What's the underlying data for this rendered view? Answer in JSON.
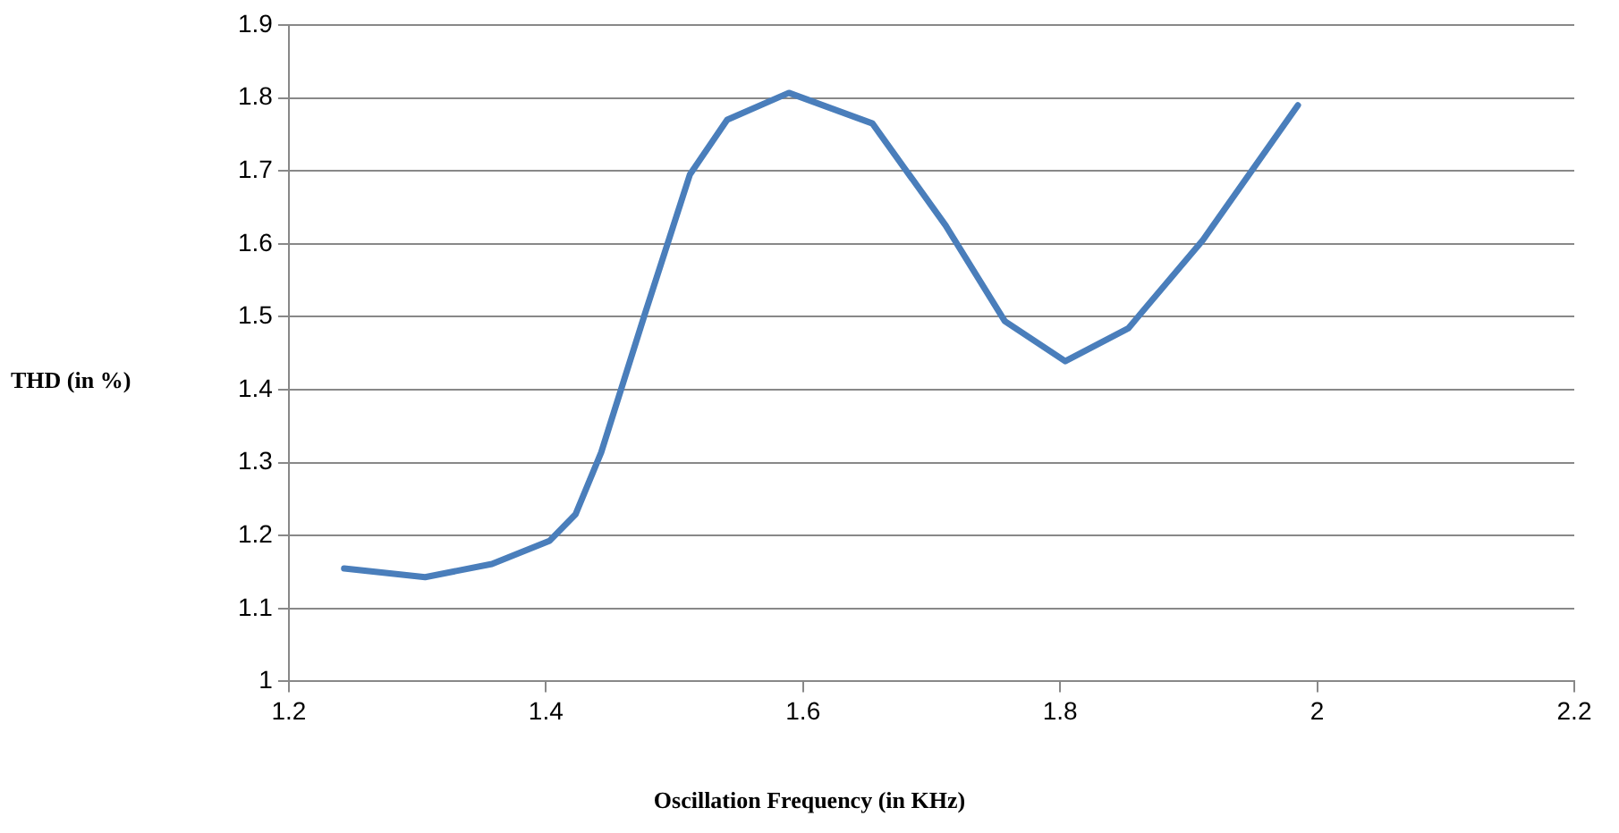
{
  "chart_data": {
    "type": "line",
    "xlabel": "Oscillation Frequency (in KHz)",
    "ylabel": "THD (in %)",
    "series": [
      {
        "color": "#4a7ebb",
        "x": [
          1.243,
          1.306,
          1.358,
          1.403,
          1.423,
          1.443,
          1.477,
          1.512,
          1.541,
          1.589,
          1.654,
          1.711,
          1.757,
          1.804,
          1.853,
          1.911,
          1.985
        ],
        "values": [
          1.155,
          1.143,
          1.161,
          1.193,
          1.229,
          1.314,
          1.504,
          1.695,
          1.77,
          1.807,
          1.765,
          1.625,
          1.494,
          1.439,
          1.484,
          1.605,
          1.79
        ]
      }
    ],
    "xlim": [
      1.2,
      2.2
    ],
    "xticks": [
      1.2,
      1.4,
      1.6,
      1.8,
      2,
      2.2
    ],
    "ylim": [
      1,
      1.9
    ],
    "yticks": [
      1,
      1.1,
      1.2,
      1.3,
      1.4,
      1.5,
      1.6,
      1.7,
      1.8,
      1.9
    ],
    "grid": "y",
    "legend": false,
    "marker": "none",
    "line_style": "solid"
  }
}
